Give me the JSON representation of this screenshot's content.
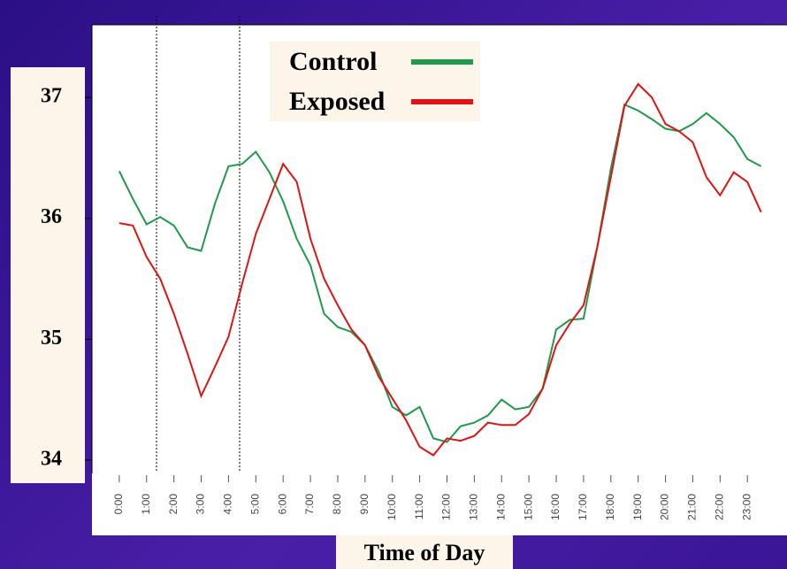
{
  "chart_data": {
    "type": "line",
    "x_label": "Time of Day",
    "x": [
      0,
      0.5,
      1,
      1.5,
      2,
      2.5,
      3,
      3.5,
      4,
      4.5,
      5,
      5.5,
      6,
      6.5,
      7,
      7.5,
      8,
      8.5,
      9,
      9.5,
      10,
      10.5,
      11,
      11.5,
      12,
      12.5,
      13,
      13.5,
      14,
      14.5,
      15,
      15.5,
      16,
      16.5,
      17,
      17.5,
      18,
      18.5,
      19,
      19.5,
      20,
      20.5,
      21,
      21.5,
      22,
      22.5,
      23,
      23.5
    ],
    "series": [
      {
        "name": "Control",
        "color": "#1f9a4c",
        "values": [
          36.39,
          36.16,
          35.95,
          36.01,
          35.94,
          35.76,
          35.73,
          36.12,
          36.43,
          36.45,
          36.55,
          36.38,
          36.14,
          35.83,
          35.61,
          35.21,
          35.1,
          35.06,
          34.95,
          34.73,
          34.44,
          34.37,
          34.44,
          34.18,
          34.15,
          34.28,
          34.31,
          34.37,
          34.5,
          34.42,
          34.44,
          34.59,
          35.08,
          35.16,
          35.17,
          35.76,
          36.41,
          36.94,
          36.89,
          36.82,
          36.74,
          36.72,
          36.78,
          36.87,
          36.78,
          36.67,
          36.49,
          36.43
        ]
      },
      {
        "name": "Exposed",
        "color": "#e01414",
        "values": [
          35.96,
          35.94,
          35.68,
          35.5,
          35.21,
          34.88,
          34.53,
          34.77,
          35.02,
          35.46,
          35.87,
          36.16,
          36.45,
          36.3,
          35.83,
          35.5,
          35.28,
          35.08,
          34.95,
          34.69,
          34.51,
          34.33,
          34.11,
          34.04,
          34.18,
          34.16,
          34.2,
          34.31,
          34.29,
          34.29,
          34.38,
          34.59,
          34.95,
          35.13,
          35.28,
          35.76,
          36.34,
          36.93,
          37.11,
          37.0,
          36.78,
          36.72,
          36.63,
          36.34,
          36.19,
          36.38,
          36.3,
          36.05
        ]
      }
    ],
    "xlim": [
      -1,
      24.45
    ],
    "ylim": [
      33.89,
      37.6
    ],
    "yticks": [
      34,
      35,
      36,
      37
    ],
    "xticks": [
      {
        "value": 0,
        "label": "0:00"
      },
      {
        "value": 1,
        "label": "1:00"
      },
      {
        "value": 2,
        "label": "2:00"
      },
      {
        "value": 3,
        "label": "3:00"
      },
      {
        "value": 4,
        "label": "4:00"
      },
      {
        "value": 5,
        "label": "5:00"
      },
      {
        "value": 6,
        "label": "6:00"
      },
      {
        "value": 7,
        "label": "7:00"
      },
      {
        "value": 8,
        "label": "8:00"
      },
      {
        "value": 9,
        "label": "9:00"
      },
      {
        "value": 10,
        "label": "10:00"
      },
      {
        "value": 11,
        "label": "11:00"
      },
      {
        "value": 12,
        "label": "12:00"
      },
      {
        "value": 13,
        "label": "13:00"
      },
      {
        "value": 14,
        "label": "14:00"
      },
      {
        "value": 15,
        "label": "15:00"
      },
      {
        "value": 16,
        "label": "16:00"
      },
      {
        "value": 17,
        "label": "17:00"
      },
      {
        "value": 18,
        "label": "18:00"
      },
      {
        "value": 19,
        "label": "19:00"
      },
      {
        "value": 20,
        "label": "20:00"
      },
      {
        "value": 21,
        "label": "21:00"
      },
      {
        "value": 22,
        "label": "22:00"
      },
      {
        "value": 23,
        "label": "23:00"
      }
    ],
    "grid": false
  }
}
